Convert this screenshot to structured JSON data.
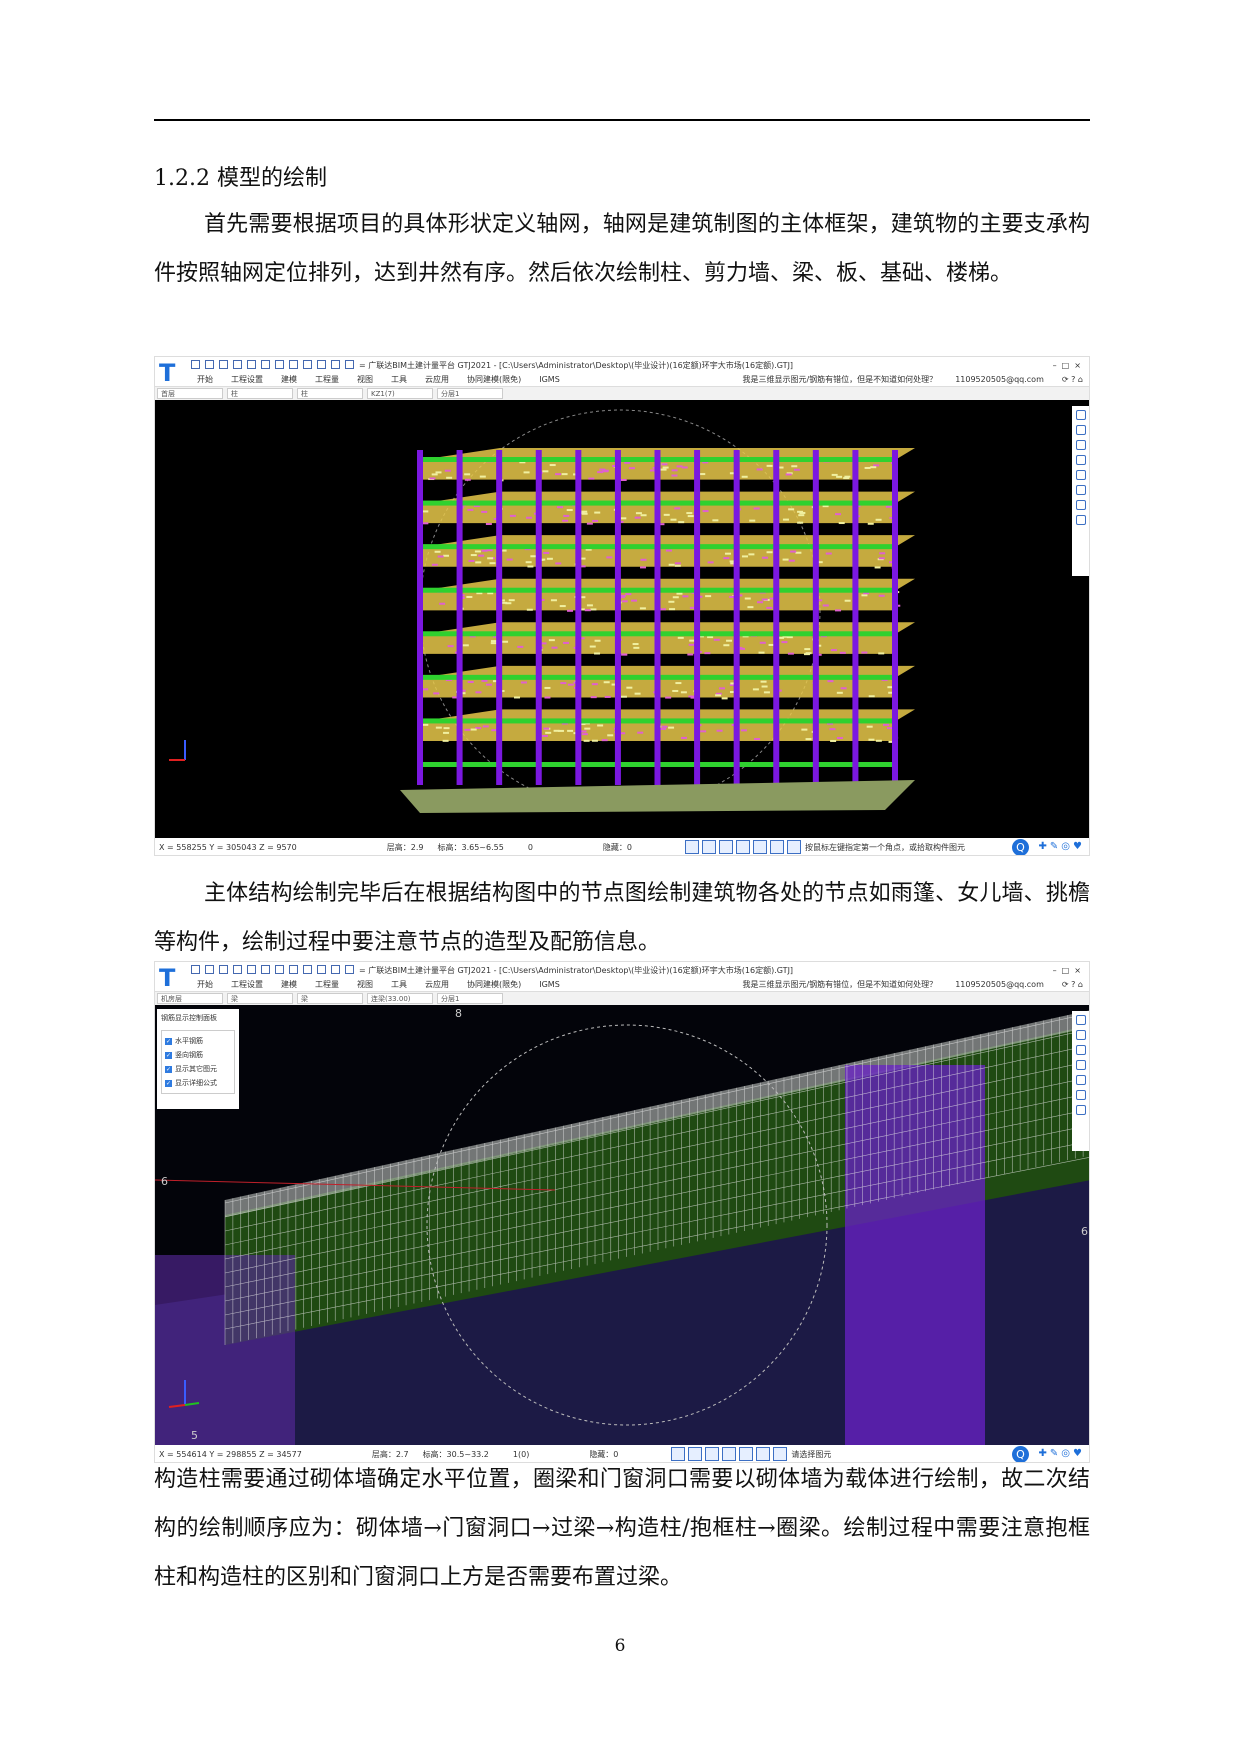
{
  "section": {
    "heading": "1.2.2 模型的绘制",
    "para1": "首先需要根据项目的具体形状定义轴网，轴网是建筑制图的主体框架，建筑物的主要支承构件按照轴网定位排列，达到井然有序。然后依次绘制柱、剪力墙、梁、板、基础、楼梯。",
    "para2": "主体结构绘制完毕后在根据结构图中的节点图绘制建筑物各处的节点如雨篷、女儿墙、挑檐等构件，绘制过程中要注意节点的造型及配筋信息。",
    "para3": "构造柱需要通过砌体墙确定水平位置，圈梁和门窗洞口需要以砌体墙为载体进行绘制，故二次结构的绘制顺序应为：砌体墙→门窗洞口→过梁→构造柱/抱框柱→圈梁。绘制过程中需要注意抱框柱和构造柱的区别和门窗洞口上方是否需要布置过梁。"
  },
  "screenshot1": {
    "logo": "T",
    "title": "= 广联达BIM土建计量平台 GTJ2021 - [C:\\Users\\Administrator\\Desktop\\(毕业设计)(16定额)环宇大市场(16定额).GTJ]",
    "menu": [
      "开始",
      "工程设置",
      "建模",
      "工程量",
      "视图",
      "工具",
      "云应用",
      "协同建模(限免)",
      "IGMS"
    ],
    "hint": "我是三维显示图元/钢筋有错位，但是不知道如何处理？",
    "user": "1109520505@qq.com",
    "dropdowns": [
      "首层",
      "柱",
      "柱",
      "KZ1(7)",
      "分层1"
    ],
    "status": {
      "coords": "X = 558255 Y = 305043 Z = 9570",
      "floor_height": "层高：2.9",
      "elevation": "标高：3.65~6.55",
      "count": "0",
      "hidden": "隐藏：0",
      "hint": "按鼠标左键指定第一个角点，或拾取构件图元"
    }
  },
  "screenshot2": {
    "logo": "T",
    "title": "= 广联达BIM土建计量平台 GTJ2021 - [C:\\Users\\Administrator\\Desktop\\(毕业设计)(16定额)环宇大市场(16定额).GTJ]",
    "menu": [
      "开始",
      "工程设置",
      "建模",
      "工程量",
      "视图",
      "工具",
      "云应用",
      "协同建模(限免)",
      "IGMS"
    ],
    "hint": "我是三维显示图元/钢筋有错位，但是不知道如何处理？",
    "user": "1109520505@qq.com",
    "dropdowns": [
      "机房层",
      "梁",
      "梁",
      "连梁(33.00)",
      "分层1"
    ],
    "panel": {
      "title": "钢筋显示控制面板",
      "items": [
        "水平钢筋",
        "竖向钢筋",
        "显示其它图元",
        "显示详细公式"
      ]
    },
    "axis_labels": [
      "8",
      "6",
      "6",
      "5"
    ],
    "status": {
      "coords": "X = 554614 Y = 298855 Z = 34577",
      "floor_height": "层高：2.7",
      "elevation": "标高：30.5~33.2",
      "count": "1(0)",
      "hidden": "隐藏：0",
      "hint": "请选择图元"
    }
  },
  "page_number": "6",
  "colors": {
    "column": "#7b18e0",
    "beam": "#2fd12f",
    "slab": "#e8c84a",
    "accent": "#1e6fd9"
  }
}
